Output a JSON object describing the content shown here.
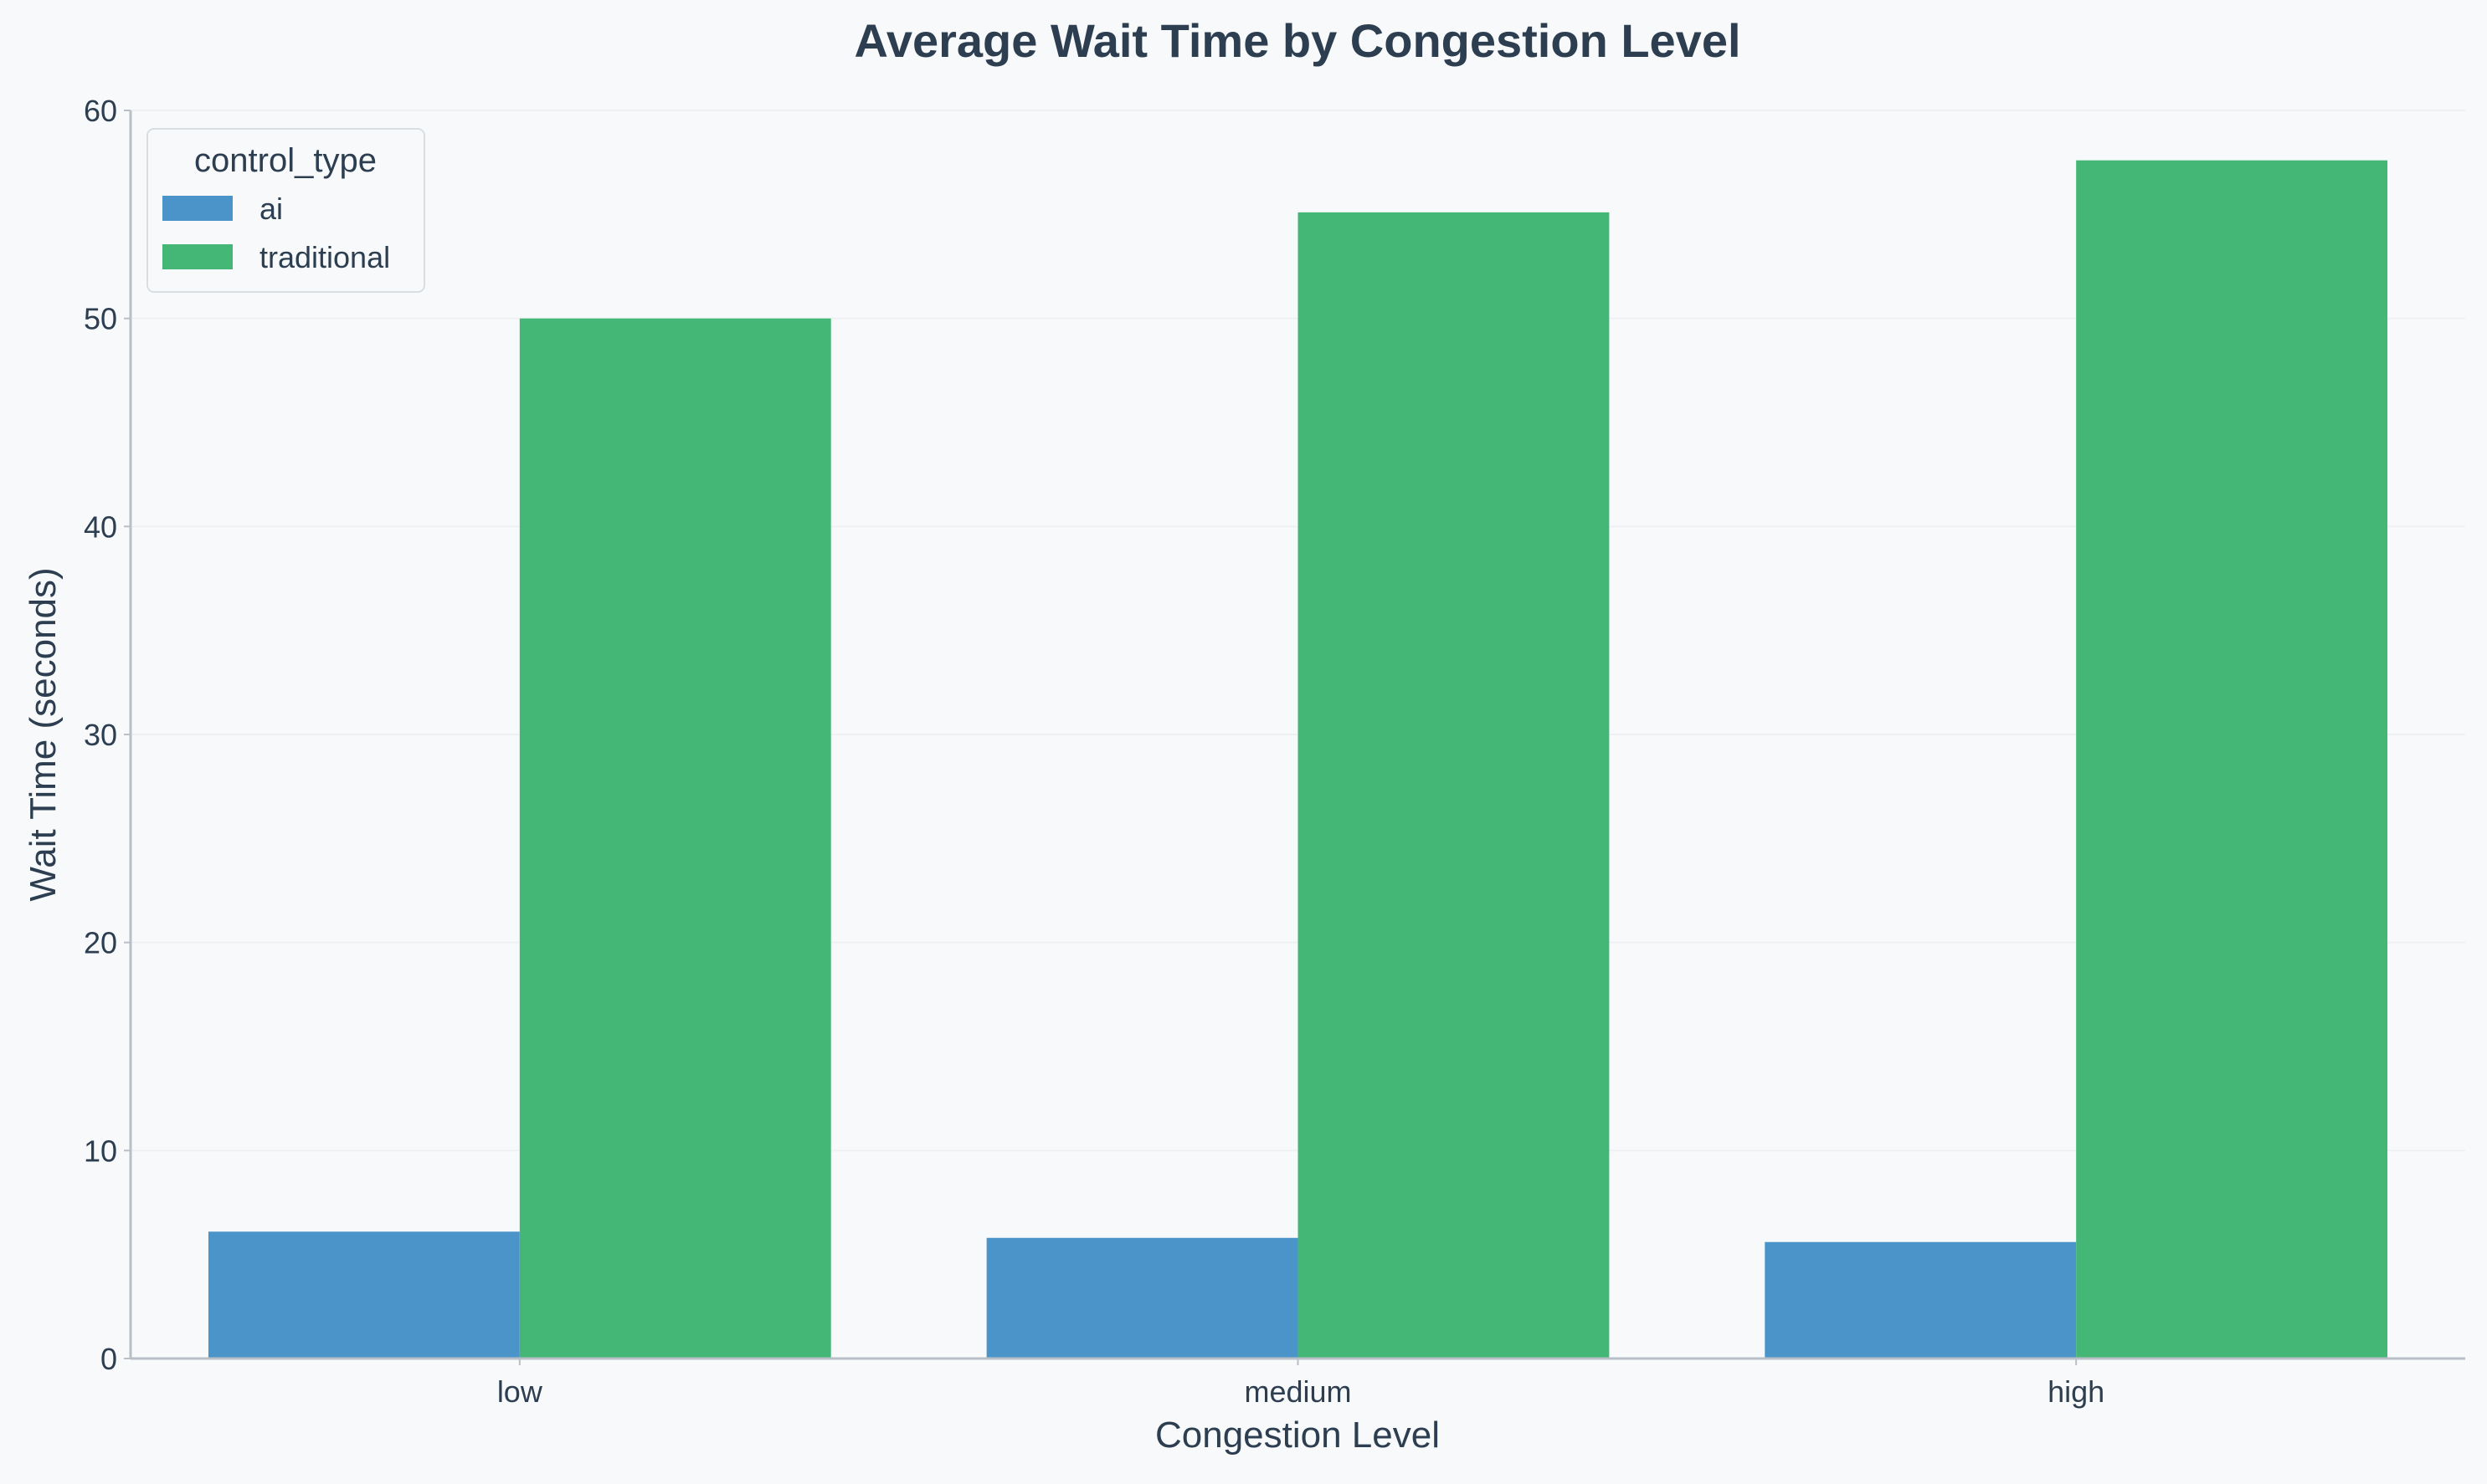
{
  "chart_data": {
    "type": "bar",
    "title": "Average Wait Time by Congestion Level",
    "xlabel": "Congestion Level",
    "ylabel": "Wait Time (seconds)",
    "categories": [
      "low",
      "medium",
      "high"
    ],
    "series": [
      {
        "name": "ai",
        "color": "#4a94c9",
        "values": [
          6.1,
          5.8,
          5.6
        ]
      },
      {
        "name": "traditional",
        "color": "#44b776",
        "values": [
          50.0,
          55.1,
          57.6
        ]
      }
    ],
    "ylim": [
      0,
      60
    ],
    "yticks": [
      0,
      10,
      20,
      30,
      40,
      50,
      60
    ],
    "grid": true,
    "legend": {
      "title": "control_type",
      "position": "top-left"
    },
    "colors": {
      "background": "#f7f9fb",
      "text": "#2c3e50",
      "axis": "#b8bfc6",
      "grid": "#eef1f4"
    }
  }
}
